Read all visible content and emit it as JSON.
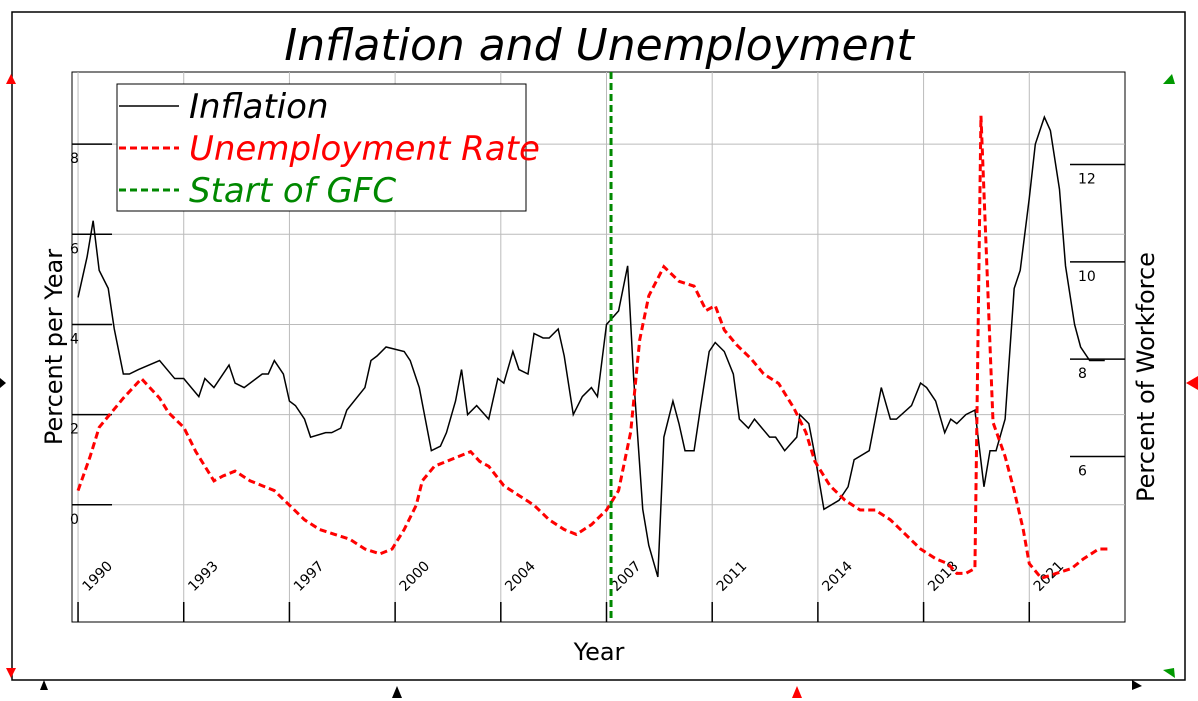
{
  "chart_data": {
    "type": "line",
    "title": "Inflation and Unemployment",
    "xlabel": "Year",
    "ylabel": "Percent per Year",
    "y2label": "Percent of Workforce",
    "xlim": [
      1989.8,
      2024.67
    ],
    "ylim": [
      -2.6,
      9.6
    ],
    "y2lim": [
      2.6,
      13.9
    ],
    "xticks": [
      1990,
      {
        "value": 1993.5,
        "label": "1993"
      },
      1997,
      {
        "value": 2000.5,
        "label": "2000"
      },
      2004,
      {
        "value": 2007.5,
        "label": "2007"
      },
      2011,
      {
        "value": 2014.5,
        "label": "2014"
      },
      2018,
      {
        "value": 2021.5,
        "label": "2021"
      }
    ],
    "yticks": [
      0,
      2,
      4,
      6,
      8
    ],
    "y2ticks": [
      6,
      8,
      10,
      12
    ],
    "grid": true,
    "legend": "upper left",
    "series": [
      {
        "name": "Inflation",
        "color": "#000000",
        "linestyle": "solid",
        "x": [
          1990.0,
          1990.3,
          1990.5,
          1990.7,
          1991.0,
          1991.2,
          1991.5,
          1991.7,
          1992.0,
          1992.7,
          1993.2,
          1993.5,
          1994.0,
          1994.2,
          1994.5,
          1995.0,
          1995.2,
          1995.5,
          1996.1,
          1996.3,
          1996.5,
          1996.8,
          1997.0,
          1997.2,
          1997.5,
          1997.7,
          1998.2,
          1998.4,
          1998.7,
          1998.9,
          1999.5,
          1999.7,
          1999.9,
          2000.2,
          2000.8,
          2001.0,
          2001.3,
          2001.5,
          2001.7,
          2002.0,
          2002.2,
          2002.5,
          2002.7,
          2002.9,
          2003.2,
          2003.6,
          2003.9,
          2004.1,
          2004.4,
          2004.6,
          2004.9,
          2005.1,
          2005.4,
          2005.6,
          2005.9,
          2006.1,
          2006.4,
          2006.7,
          2007.0,
          2007.2,
          2007.5,
          2007.9,
          2008.2,
          2008.4,
          2008.7,
          2008.9,
          2009.2,
          2009.4,
          2009.7,
          2009.9,
          2010.1,
          2010.4,
          2010.6,
          2010.9,
          2011.1,
          2011.4,
          2011.7,
          2011.9,
          2012.2,
          2012.4,
          2012.9,
          2013.1,
          2013.4,
          2013.8,
          2013.9,
          2014.2,
          2014.4,
          2014.7,
          2015.2,
          2015.5,
          2015.7,
          2016.2,
          2016.4,
          2016.6,
          2016.9,
          2017.1,
          2017.6,
          2017.9,
          2018.1,
          2018.4,
          2018.7,
          2018.9,
          2019.1,
          2019.4,
          2019.7,
          2020.0,
          2020.2,
          2020.4,
          2020.7,
          2021.0,
          2021.2,
          2021.5,
          2021.7,
          2022.0,
          2022.2,
          2022.5,
          2022.7,
          2023.0,
          2023.2,
          2023.5,
          2024.0
        ],
        "values": [
          4.6,
          5.5,
          6.3,
          5.2,
          4.8,
          3.9,
          2.9,
          2.9,
          3.0,
          3.2,
          2.8,
          2.8,
          2.4,
          2.8,
          2.6,
          3.1,
          2.7,
          2.6,
          2.9,
          2.9,
          3.2,
          2.9,
          2.3,
          2.2,
          1.9,
          1.5,
          1.6,
          1.6,
          1.7,
          2.1,
          2.6,
          3.2,
          3.3,
          3.5,
          3.4,
          3.2,
          2.6,
          1.9,
          1.2,
          1.3,
          1.6,
          2.3,
          3.0,
          2.0,
          2.2,
          1.9,
          2.8,
          2.7,
          3.4,
          3.0,
          2.9,
          3.8,
          3.7,
          3.7,
          3.9,
          3.3,
          2.0,
          2.4,
          2.6,
          2.4,
          4.0,
          4.3,
          5.3,
          2.8,
          -0.1,
          -0.9,
          -1.6,
          1.5,
          2.3,
          1.8,
          1.2,
          1.2,
          2.1,
          3.4,
          3.6,
          3.4,
          2.9,
          1.9,
          1.7,
          1.9,
          1.5,
          1.5,
          1.2,
          1.5,
          2.0,
          1.8,
          1.1,
          -0.1,
          0.1,
          0.4,
          1.0,
          1.2,
          1.9,
          2.6,
          1.9,
          1.9,
          2.2,
          2.7,
          2.6,
          2.3,
          1.6,
          1.9,
          1.8,
          2.0,
          2.1,
          0.4,
          1.2,
          1.2,
          1.9,
          4.8,
          5.2,
          6.8,
          8.0,
          8.6,
          8.3,
          7.0,
          5.3,
          4.0,
          3.5,
          3.2,
          3.2
        ]
      },
      {
        "name": "Unemployment Rate",
        "color": "#ff0000",
        "linestyle": "dashed",
        "axis": "y2",
        "x": [
          1990.0,
          1990.4,
          1990.7,
          1991.1,
          1991.5,
          1991.8,
          1992.1,
          1992.4,
          1992.7,
          1993.0,
          1993.5,
          1993.9,
          1994.2,
          1994.5,
          1994.8,
          1995.2,
          1995.7,
          1996.1,
          1996.5,
          1997.0,
          1997.5,
          1998.0,
          1998.5,
          1999.0,
          1999.5,
          2000.0,
          2000.4,
          2000.8,
          2001.2,
          2001.4,
          2001.8,
          2002.2,
          2002.6,
          2003.0,
          2003.3,
          2003.6,
          2004.1,
          2004.6,
          2005.1,
          2005.6,
          2006.1,
          2006.5,
          2007.0,
          2007.5,
          2007.9,
          2008.3,
          2008.6,
          2008.9,
          2009.4,
          2009.9,
          2010.4,
          2010.8,
          2011.1,
          2011.4,
          2011.8,
          2012.3,
          2012.7,
          2013.2,
          2013.7,
          2014.1,
          2014.4,
          2014.9,
          2015.4,
          2015.9,
          2016.4,
          2016.9,
          2017.4,
          2017.9,
          2018.4,
          2018.8,
          2019.1,
          2019.4,
          2019.7,
          2019.9,
          2020.3,
          2020.7,
          2021.0,
          2021.3,
          2021.5,
          2021.9,
          2022.4,
          2022.9,
          2023.3,
          2023.8,
          2024.2
        ],
        "values": [
          5.3,
          6.0,
          6.6,
          6.9,
          7.2,
          7.4,
          7.6,
          7.4,
          7.2,
          6.9,
          6.6,
          6.1,
          5.8,
          5.5,
          5.6,
          5.7,
          5.5,
          5.4,
          5.3,
          5.0,
          4.7,
          4.5,
          4.4,
          4.3,
          4.1,
          4.0,
          4.1,
          4.5,
          5.0,
          5.5,
          5.8,
          5.9,
          6.0,
          6.1,
          5.9,
          5.8,
          5.4,
          5.2,
          5.0,
          4.7,
          4.5,
          4.4,
          4.6,
          4.9,
          5.3,
          6.5,
          8.4,
          9.3,
          9.9,
          9.6,
          9.5,
          9.0,
          9.1,
          8.6,
          8.3,
          8.0,
          7.7,
          7.5,
          7.0,
          6.5,
          5.9,
          5.4,
          5.1,
          4.9,
          4.9,
          4.7,
          4.4,
          4.1,
          3.9,
          3.8,
          3.6,
          3.6,
          3.7,
          13.0,
          6.7,
          6.0,
          5.3,
          4.5,
          3.8,
          3.5,
          3.6,
          3.7,
          3.9,
          4.1,
          4.1
        ]
      }
    ],
    "vlines": [
      {
        "name": "Start of GFC",
        "color": "#008800",
        "x": 2007.65
      }
    ]
  }
}
